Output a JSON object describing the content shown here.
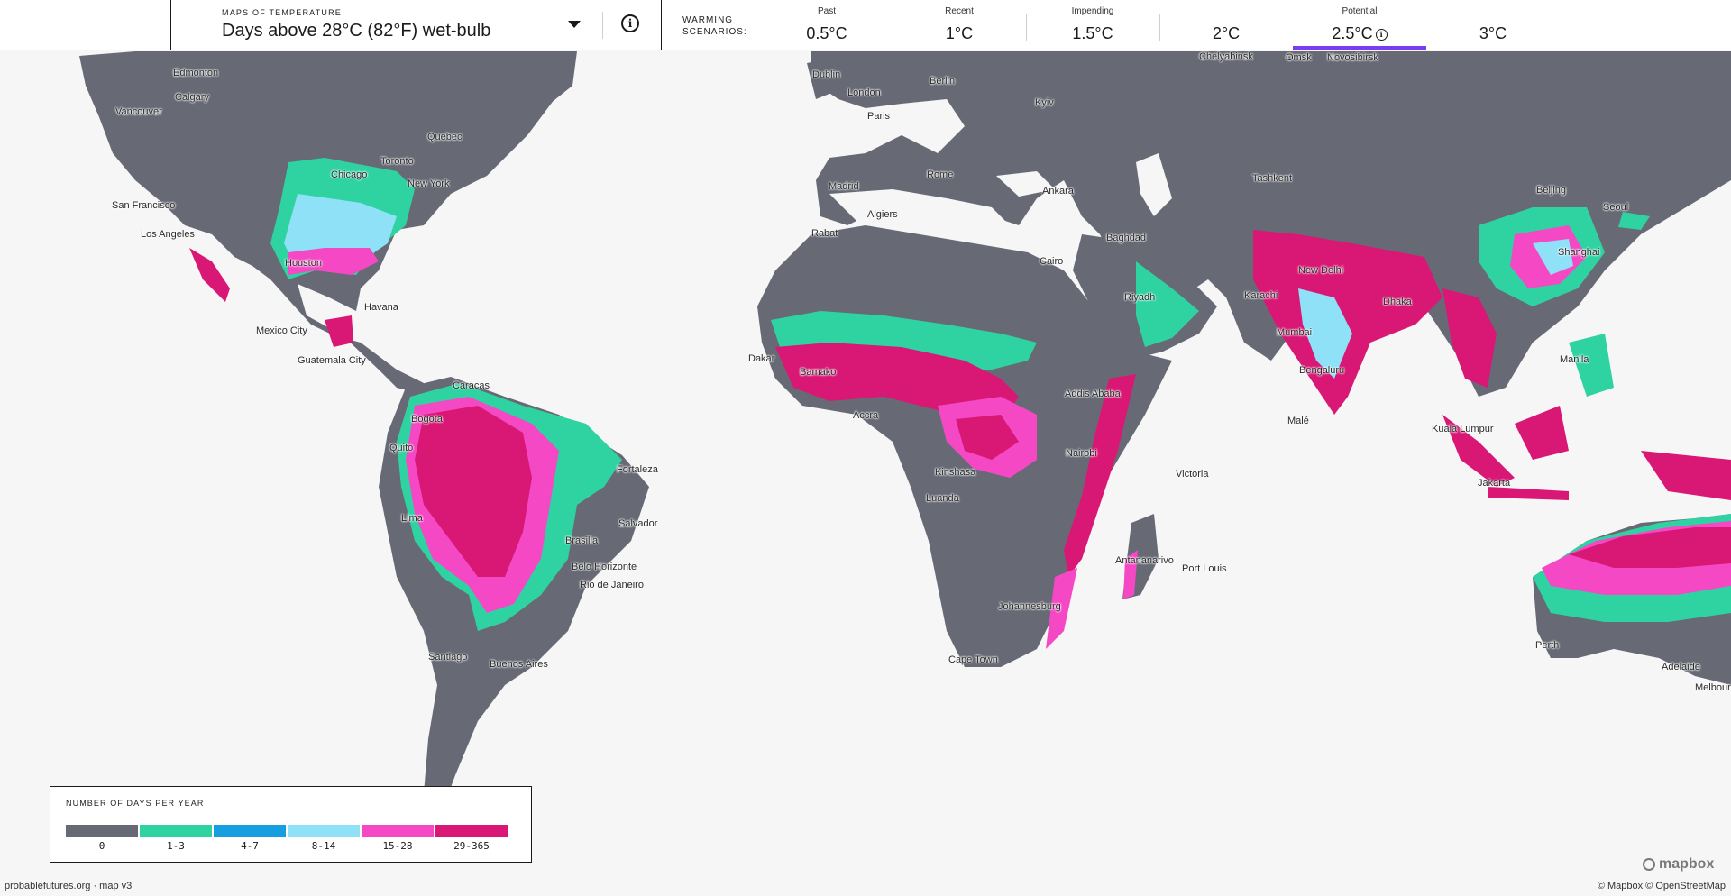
{
  "header": {
    "map_kicker": "MAPS OF TEMPERATURE",
    "map_title": "Days above 28°C (82°F) wet-bulb",
    "warming_label_line1": "WARMING",
    "warming_label_line2": "SCENARIOS:",
    "active_color": "#7a3cf0",
    "info_icon": "info-icon",
    "dropdown_icon": "caret-down-icon"
  },
  "scenarios": [
    {
      "category": "Past",
      "value": "0.5°C"
    },
    {
      "category": "Recent",
      "value": "1°C"
    },
    {
      "category": "Impending",
      "value": "1.5°C"
    },
    {
      "category": "",
      "value": "2°C"
    },
    {
      "category": "Potential",
      "value": "2.5°C",
      "active": true
    },
    {
      "category": "",
      "value": "3°C"
    }
  ],
  "legend": {
    "title": "NUMBER OF DAYS PER YEAR",
    "bins": [
      {
        "label": "0",
        "color": "#676a75"
      },
      {
        "label": "1-3",
        "color": "#2fd3a2"
      },
      {
        "label": "4-7",
        "color": "#159fe0"
      },
      {
        "label": "8-14",
        "color": "#8ee1f6"
      },
      {
        "label": "15-28",
        "color": "#f548c5"
      },
      {
        "label": "29-365",
        "color": "#d91876"
      }
    ]
  },
  "cities": {
    "edmonton": "Edmonton",
    "calgary": "Calgary",
    "vancouver": "Vancouver",
    "quebec": "Quebec",
    "toronto": "Toronto",
    "chicago": "Chicago",
    "new_york": "New York",
    "san_francisco": "San Francisco",
    "los_angeles": "Los Angeles",
    "houston": "Houston",
    "havana": "Havana",
    "mexico_city": "Mexico City",
    "guatemala_city": "Guatemala City",
    "caracas": "Caracas",
    "bogota": "Bogota",
    "quito": "Quito",
    "lima": "Lima",
    "fortaleza": "Fortaleza",
    "salvador": "Salvador",
    "brasilia": "Brasilia",
    "belo_horizonte": "Belo Horizonte",
    "rio": "Rio de Janeiro",
    "santiago": "Santiago",
    "buenos_aires": "Buenos Aires",
    "dublin": "Dublin",
    "london": "London",
    "paris": "Paris",
    "berlin": "Berlin",
    "kyiv": "Kyiv",
    "madrid": "Madrid",
    "rome": "Rome",
    "algiers": "Algiers",
    "rabat": "Rabat",
    "ankara": "Ankara",
    "cairo": "Cairo",
    "baghdad": "Baghdad",
    "riyadh": "Riyadh",
    "chelyabinsk": "Chelyabinsk",
    "omsk": "Omsk",
    "novosibirsk": "Novosibirsk",
    "tashkent": "Tashkent",
    "karachi": "Karachi",
    "new_delhi": "New Delhi",
    "mumbai": "Mumbai",
    "bengaluru": "Bengaluru",
    "dhaka": "Dhaka",
    "male": "Malé",
    "beijing": "Beijing",
    "seoul": "Seoul",
    "shanghai": "Shanghai",
    "manila": "Manila",
    "kuala_lumpur": "Kuala Lumpur",
    "jakarta": "Jakarta",
    "dakar": "Dakar",
    "bamako": "Bamako",
    "accra": "Accra",
    "addis_ababa": "Addis Ababa",
    "nairobi": "Nairobi",
    "kinshasa": "Kinshasa",
    "luanda": "Luanda",
    "victoria": "Victoria",
    "antananarivo": "Antananarivo",
    "port_louis": "Port Louis",
    "johannesburg": "Johannesburg",
    "cape_town": "Cape Town",
    "perth": "Perth",
    "adelaide": "Adelaide",
    "melbourne": "Melbour"
  },
  "footer": {
    "mapbox": "mapbox",
    "attribution": "© Mapbox © OpenStreetMap",
    "site": "probablefutures.org · map v3"
  }
}
